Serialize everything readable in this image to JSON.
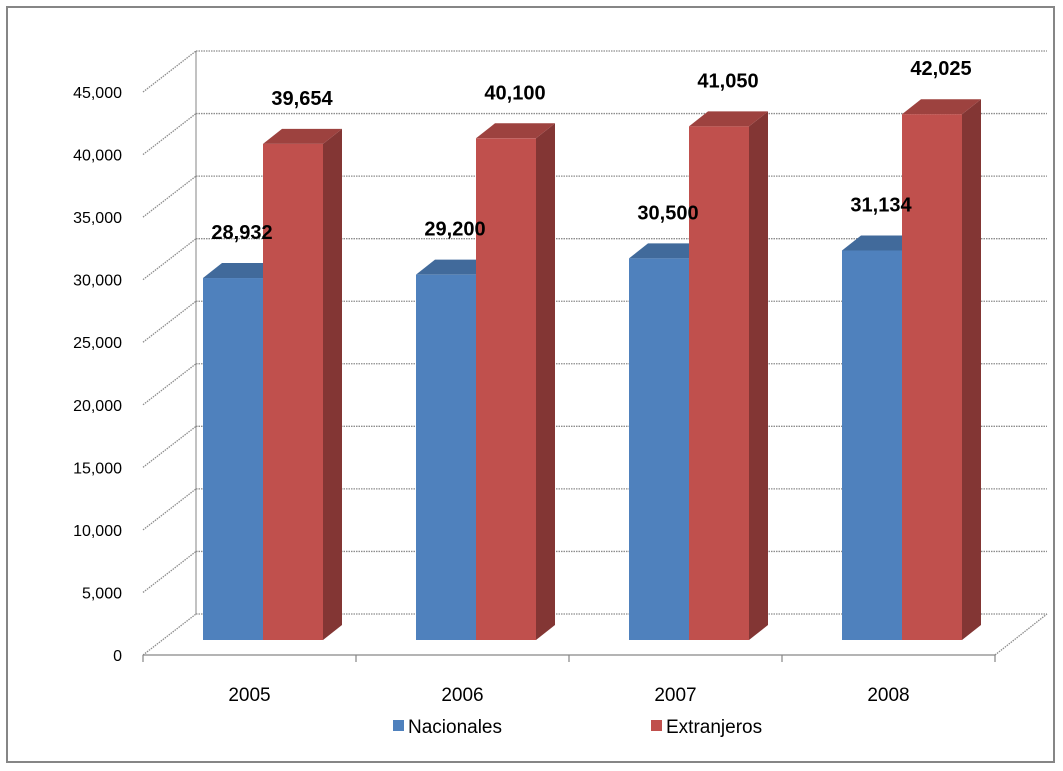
{
  "chart_data": {
    "type": "bar",
    "categories": [
      "2005",
      "2006",
      "2007",
      "2008"
    ],
    "series": [
      {
        "name": "Nacionales",
        "values": [
          28932,
          29200,
          30500,
          31134
        ],
        "labels": [
          "28,932",
          "29,200",
          "30,500",
          "31,134"
        ]
      },
      {
        "name": "Extranjeros",
        "values": [
          39654,
          40100,
          41050,
          42025
        ],
        "labels": [
          "39,654",
          "40,100",
          "41,050",
          "42,025"
        ]
      }
    ],
    "ylim": [
      0,
      45000
    ],
    "yticks": [
      "0",
      "5,000",
      "10,000",
      "15,000",
      "20,000",
      "25,000",
      "30,000",
      "35,000",
      "40,000",
      "45,000"
    ],
    "grid": true,
    "style": "3d-column",
    "legend_position": "bottom",
    "colors": {
      "Nacionales": "#4f81bd",
      "Extranjeros": "#c0504d"
    }
  }
}
